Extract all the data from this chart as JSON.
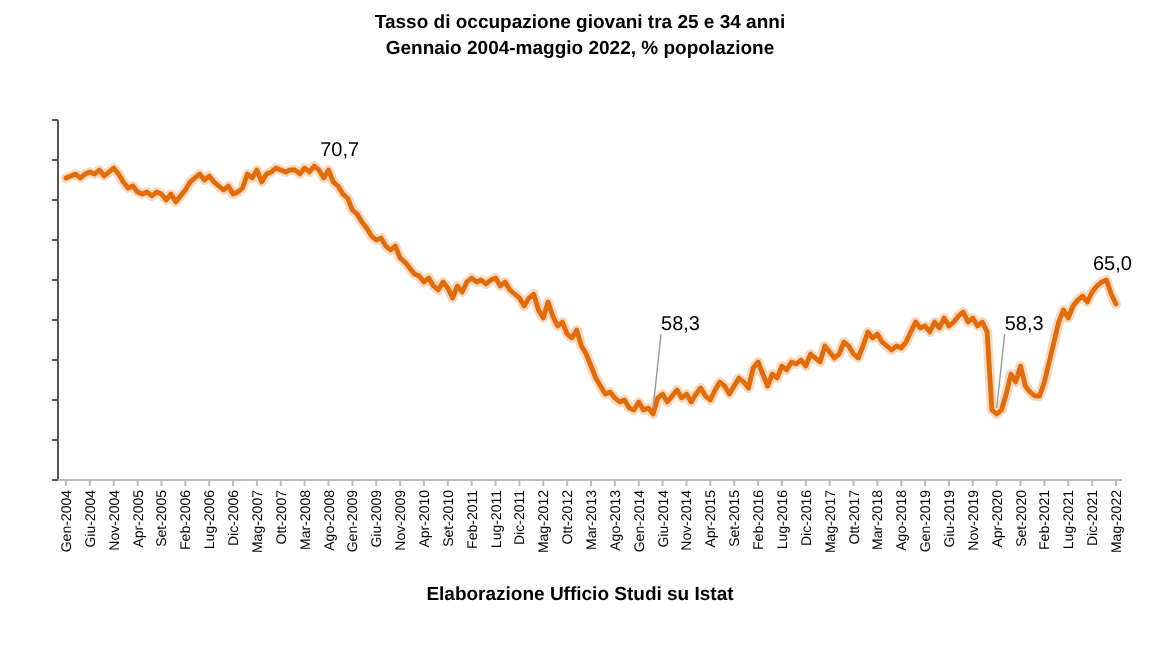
{
  "chart_data": {
    "type": "line",
    "title": "Tasso di occupazione giovani tra 25 e 34 anni",
    "subtitle": "Gennaio 2004-maggio 2022, % popolazione",
    "categories": [
      "Gen-2004",
      null,
      null,
      null,
      null,
      "Giu-2004",
      null,
      null,
      null,
      null,
      "Nov-2004",
      null,
      null,
      null,
      null,
      "Apr-2005",
      null,
      null,
      null,
      null,
      "Set-2005",
      null,
      null,
      null,
      null,
      "Feb-2006",
      null,
      null,
      null,
      null,
      "Lug-2006",
      null,
      null,
      null,
      null,
      "Dic-2006",
      null,
      null,
      null,
      null,
      "Mag-2007",
      null,
      null,
      null,
      null,
      "Ott-2007",
      null,
      null,
      null,
      null,
      "Mar-2008",
      null,
      null,
      null,
      null,
      "Ago-2008",
      null,
      null,
      null,
      null,
      "Gen-2009",
      null,
      null,
      null,
      null,
      "Giu-2009",
      null,
      null,
      null,
      null,
      "Nov-2009",
      null,
      null,
      null,
      null,
      "Apr-2010",
      null,
      null,
      null,
      null,
      "Set-2010",
      null,
      null,
      null,
      null,
      "Feb-2011",
      null,
      null,
      null,
      null,
      "Lug-2011",
      null,
      null,
      null,
      null,
      "Dic-2011",
      null,
      null,
      null,
      null,
      "Mag-2012",
      null,
      null,
      null,
      null,
      "Ott-2012",
      null,
      null,
      null,
      null,
      "Mar-2013",
      null,
      null,
      null,
      null,
      "Ago-2013",
      null,
      null,
      null,
      null,
      "Gen-2014",
      null,
      null,
      null,
      null,
      "Giu-2014",
      null,
      null,
      null,
      null,
      "Nov-2014",
      null,
      null,
      null,
      null,
      "Apr-2015",
      null,
      null,
      null,
      null,
      "Set-2015",
      null,
      null,
      null,
      null,
      "Feb-2016",
      null,
      null,
      null,
      null,
      "Lug-2016",
      null,
      null,
      null,
      null,
      "Dic-2016",
      null,
      null,
      null,
      null,
      "Mag-2017",
      null,
      null,
      null,
      null,
      "Ott-2017",
      null,
      null,
      null,
      null,
      "Mar-2018",
      null,
      null,
      null,
      null,
      "Ago-2018",
      null,
      null,
      null,
      null,
      "Gen-2019",
      null,
      null,
      null,
      null,
      "Giu-2019",
      null,
      null,
      null,
      null,
      "Nov-2019",
      null,
      null,
      null,
      null,
      "Apr-2020",
      null,
      null,
      null,
      null,
      "Set-2020",
      null,
      null,
      null,
      null,
      "Feb-2021",
      null,
      null,
      null,
      null,
      "Lug-2021",
      null,
      null,
      null,
      null,
      "Dic-2021",
      null,
      null,
      null,
      null,
      "Mag-2022"
    ],
    "values": [
      70.1,
      70.2,
      70.3,
      70.1,
      70.3,
      70.4,
      70.3,
      70.5,
      70.2,
      70.4,
      70.6,
      70.3,
      69.9,
      69.6,
      69.7,
      69.4,
      69.3,
      69.4,
      69.2,
      69.4,
      69.3,
      69.0,
      69.3,
      68.9,
      69.2,
      69.5,
      69.9,
      70.1,
      70.3,
      70.0,
      70.2,
      69.9,
      69.7,
      69.5,
      69.7,
      69.3,
      69.4,
      69.6,
      70.3,
      70.1,
      70.5,
      69.9,
      70.3,
      70.4,
      70.6,
      70.5,
      70.4,
      70.5,
      70.5,
      70.3,
      70.6,
      70.4,
      70.7,
      70.5,
      70.1,
      70.5,
      69.9,
      69.7,
      69.3,
      69.1,
      68.5,
      68.3,
      67.9,
      67.6,
      67.2,
      67.0,
      67.1,
      66.7,
      66.5,
      66.7,
      66.1,
      65.9,
      65.6,
      65.3,
      65.2,
      64.9,
      65.1,
      64.7,
      64.5,
      64.9,
      64.6,
      64.1,
      64.7,
      64.4,
      64.9,
      65.1,
      64.9,
      65.0,
      64.8,
      65.0,
      65.1,
      64.7,
      64.9,
      64.5,
      64.3,
      64.1,
      63.7,
      64.1,
      64.3,
      63.5,
      63.1,
      63.9,
      63.2,
      62.7,
      62.9,
      62.3,
      62.1,
      62.5,
      61.7,
      61.3,
      60.7,
      60.1,
      59.7,
      59.3,
      59.4,
      59.1,
      58.9,
      59.0,
      58.6,
      58.5,
      58.9,
      58.5,
      58.6,
      58.3,
      59.1,
      59.3,
      58.9,
      59.2,
      59.5,
      59.1,
      59.3,
      58.9,
      59.3,
      59.6,
      59.2,
      59.0,
      59.5,
      59.9,
      59.7,
      59.3,
      59.7,
      60.1,
      59.9,
      59.6,
      60.6,
      60.9,
      60.3,
      59.7,
      60.3,
      60.1,
      60.7,
      60.5,
      60.9,
      60.8,
      61.0,
      60.7,
      61.3,
      61.1,
      60.9,
      61.7,
      61.4,
      61.1,
      61.3,
      61.9,
      61.7,
      61.3,
      61.1,
      61.7,
      62.4,
      62.1,
      62.3,
      61.9,
      61.7,
      61.5,
      61.7,
      61.6,
      61.9,
      62.4,
      62.9,
      62.6,
      62.7,
      62.4,
      62.9,
      62.6,
      63.1,
      62.7,
      62.9,
      63.2,
      63.4,
      62.9,
      63.1,
      62.7,
      62.9,
      62.4,
      58.5,
      58.3,
      58.5,
      59.3,
      60.3,
      59.9,
      60.7,
      59.7,
      59.4,
      59.2,
      59.2,
      59.9,
      60.9,
      61.9,
      62.9,
      63.5,
      63.1,
      63.7,
      64.0,
      64.2,
      63.9,
      64.4,
      64.7,
      64.9,
      65.0,
      64.3,
      63.8
    ],
    "value_labels": [
      null,
      null,
      null,
      null,
      null,
      null,
      null,
      null,
      null,
      null,
      null,
      null,
      null,
      null,
      null,
      null,
      null,
      null,
      null,
      null,
      null,
      null,
      null,
      null,
      null,
      null,
      null,
      null,
      null,
      null,
      null,
      null,
      null,
      null,
      null,
      null,
      null,
      null,
      null,
      null,
      null,
      null,
      null,
      null,
      null,
      null,
      null,
      null,
      null,
      null,
      null,
      null,
      "70,7",
      null,
      null,
      null,
      null,
      null,
      null,
      null,
      null,
      null,
      null,
      null,
      null,
      null,
      null,
      null,
      null,
      null,
      null,
      null,
      null,
      null,
      null,
      null,
      null,
      null,
      null,
      null,
      null,
      null,
      null,
      null,
      null,
      null,
      null,
      null,
      null,
      null,
      null,
      null,
      null,
      null,
      null,
      null,
      null,
      null,
      null,
      null,
      null,
      null,
      null,
      null,
      null,
      null,
      null,
      null,
      null,
      null,
      null,
      null,
      null,
      null,
      null,
      null,
      null,
      null,
      null,
      null,
      null,
      null,
      null,
      "58,3",
      null,
      null,
      null,
      null,
      null,
      null,
      null,
      null,
      null,
      null,
      null,
      null,
      null,
      null,
      null,
      null,
      null,
      null,
      null,
      null,
      null,
      null,
      null,
      null,
      null,
      null,
      null,
      null,
      null,
      null,
      null,
      null,
      null,
      null,
      null,
      null,
      null,
      null,
      null,
      null,
      null,
      null,
      null,
      null,
      null,
      null,
      null,
      null,
      null,
      null,
      null,
      null,
      null,
      null,
      null,
      null,
      null,
      null,
      null,
      null,
      null,
      null,
      null,
      null,
      null,
      null,
      null,
      null,
      null,
      null,
      null,
      "58,3",
      null,
      null,
      null,
      null,
      null,
      null,
      null,
      null,
      null,
      null,
      null,
      null,
      null,
      null,
      null,
      null,
      null,
      null,
      null,
      null,
      null,
      null,
      "65,0",
      null,
      null
    ],
    "color": "#e36c0a",
    "ylim": [
      55,
      73
    ],
    "yticks": [
      {
        "value": 55,
        "label": null
      },
      {
        "value": 57,
        "label": null
      },
      {
        "value": 59,
        "label": null
      },
      {
        "value": 61,
        "label": null
      },
      {
        "value": 63,
        "label": null
      },
      {
        "value": 65,
        "label": null
      },
      {
        "value": 67,
        "label": null
      },
      {
        "value": 69,
        "label": null
      },
      {
        "value": 71,
        "label": null
      },
      {
        "value": 73,
        "label": null
      }
    ],
    "tick_labels": "x",
    "annotations": [
      "Elaborazione Ufficio Studi su Istat"
    ]
  }
}
